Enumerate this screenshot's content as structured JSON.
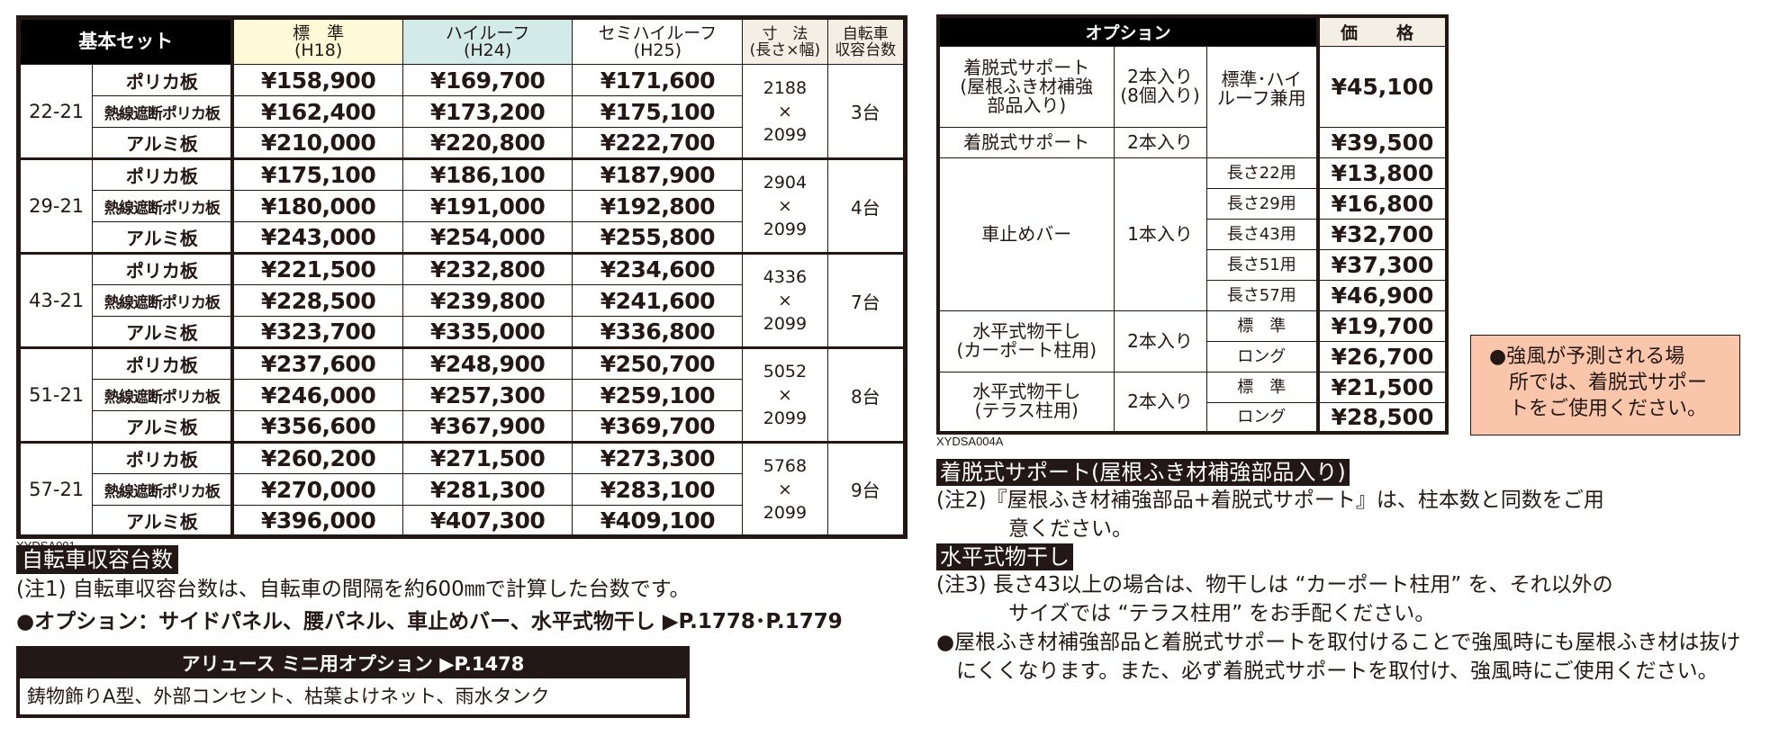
{
  "main_table": {
    "header": {
      "set_label": "基本セット",
      "h18": {
        "title": "標　準",
        "sub": "(H18)"
      },
      "h24": {
        "title": "ハイルーフ",
        "sub": "(H24)"
      },
      "h25": {
        "title": "セミハイルーフ",
        "sub": "(H25)"
      },
      "dim": {
        "title": "寸　法",
        "sub": "(長さ×幅)"
      },
      "bike": {
        "title": "自転車",
        "sub": "収容台数"
      }
    },
    "groups": [
      {
        "size": "22-21",
        "dim_len": "2188",
        "dim_x": "×",
        "dim_wid": "2099",
        "bikes": "3台",
        "rows": [
          {
            "material": "ポリカ板",
            "h18": "¥158,900",
            "h24": "¥169,700",
            "h25": "¥171,600"
          },
          {
            "material": "熱線遮断ポリカ板",
            "h18": "¥162,400",
            "h24": "¥173,200",
            "h25": "¥175,100"
          },
          {
            "material": "アルミ板",
            "h18": "¥210,000",
            "h24": "¥220,800",
            "h25": "¥222,700"
          }
        ]
      },
      {
        "size": "29-21",
        "dim_len": "2904",
        "dim_x": "×",
        "dim_wid": "2099",
        "bikes": "4台",
        "rows": [
          {
            "material": "ポリカ板",
            "h18": "¥175,100",
            "h24": "¥186,100",
            "h25": "¥187,900"
          },
          {
            "material": "熱線遮断ポリカ板",
            "h18": "¥180,000",
            "h24": "¥191,000",
            "h25": "¥192,800"
          },
          {
            "material": "アルミ板",
            "h18": "¥243,000",
            "h24": "¥254,000",
            "h25": "¥255,800"
          }
        ]
      },
      {
        "size": "43-21",
        "dim_len": "4336",
        "dim_x": "×",
        "dim_wid": "2099",
        "bikes": "7台",
        "rows": [
          {
            "material": "ポリカ板",
            "h18": "¥221,500",
            "h24": "¥232,800",
            "h25": "¥234,600"
          },
          {
            "material": "熱線遮断ポリカ板",
            "h18": "¥228,500",
            "h24": "¥239,800",
            "h25": "¥241,600"
          },
          {
            "material": "アルミ板",
            "h18": "¥323,700",
            "h24": "¥335,000",
            "h25": "¥336,800"
          }
        ]
      },
      {
        "size": "51-21",
        "dim_len": "5052",
        "dim_x": "×",
        "dim_wid": "2099",
        "bikes": "8台",
        "rows": [
          {
            "material": "ポリカ板",
            "h18": "¥237,600",
            "h24": "¥248,900",
            "h25": "¥250,700"
          },
          {
            "material": "熱線遮断ポリカ板",
            "h18": "¥246,000",
            "h24": "¥257,300",
            "h25": "¥259,100"
          },
          {
            "material": "アルミ板",
            "h18": "¥356,600",
            "h24": "¥367,900",
            "h25": "¥369,700"
          }
        ]
      },
      {
        "size": "57-21",
        "dim_len": "5768",
        "dim_x": "×",
        "dim_wid": "2099",
        "bikes": "9台",
        "rows": [
          {
            "material": "ポリカ板",
            "h18": "¥260,200",
            "h24": "¥271,500",
            "h25": "¥273,300"
          },
          {
            "material": "熱線遮断ポリカ板",
            "h18": "¥270,000",
            "h24": "¥281,300",
            "h25": "¥283,100"
          },
          {
            "material": "アルミ板",
            "h18": "¥396,000",
            "h24": "¥407,300",
            "h25": "¥409,100"
          }
        ]
      }
    ],
    "code": "XYDSA001"
  },
  "left_notes": {
    "bike_label": "自転車収容台数",
    "note1": "(注1) 自転車収容台数は、自転車の間隔を約600㎜で計算した台数です。",
    "options_line": "●オプション：サイドパネル、腰パネル、車止めバー、水平式物干し ▶P.1778･P.1779",
    "mini_box": {
      "header": "アリュース ミニ用オプション ▶P.1478",
      "body": "鋳物飾りA型、外部コンセント、枯葉よけネット、雨水タンク"
    }
  },
  "option_table": {
    "header": {
      "option": "オプション",
      "price": "価　格"
    },
    "rows": {
      "support_reinforced": {
        "name": "着脱式サポート\n(屋根ふき材補強\n部品入り)",
        "qty": "2本入り\n(8個入り)",
        "price": "¥45,100"
      },
      "compat": "標準･ハイ\nルーフ兼用",
      "support": {
        "name": "着脱式サポート",
        "qty": "2本入り",
        "price": "¥39,500"
      },
      "bar": {
        "name": "車止めバー",
        "qty": "1本入り",
        "variants": [
          {
            "spec": "長さ22用",
            "price": "¥13,800"
          },
          {
            "spec": "長さ29用",
            "price": "¥16,800"
          },
          {
            "spec": "長さ43用",
            "price": "¥32,700"
          },
          {
            "spec": "長さ51用",
            "price": "¥37,300"
          },
          {
            "spec": "長さ57用",
            "price": "¥46,900"
          }
        ]
      },
      "dryer_carport": {
        "name": "水平式物干し\n(カーポート柱用)",
        "qty": "2本入り",
        "variants": [
          {
            "spec": "標　準",
            "price": "¥19,700"
          },
          {
            "spec": "ロング",
            "price": "¥26,700"
          }
        ]
      },
      "dryer_terrace": {
        "name": "水平式物干し\n(テラス柱用)",
        "qty": "2本入り",
        "variants": [
          {
            "spec": "標　準",
            "price": "¥21,500"
          },
          {
            "spec": "ロング",
            "price": "¥28,500"
          }
        ]
      }
    },
    "code": "XYDSA004A"
  },
  "warning_box": {
    "text": "●強風が予測される場\n　所では、着脱式サポー\n　トをご使用ください。"
  },
  "right_notes": {
    "support_label": "着脱式サポート(屋根ふき材補強部品入り)",
    "note2_a": "(注2)『屋根ふき材補強部品+着脱式サポート』は、柱本数と同数をご用",
    "note2_b": "意ください。",
    "dryer_label": "水平式物干し",
    "note3_a": "(注3) 長さ43以上の場合は、物干しは “カーポート柱用” を、それ以外の",
    "note3_b": "サイズでは “テラス柱用” をお手配ください。",
    "bullet": "●屋根ふき材補強部品と着脱式サポートを取付けることで強風時にも屋根ふき材は抜けにくくなります。また、必ず着脱式サポートを取付け、強風時にご使用ください。"
  }
}
